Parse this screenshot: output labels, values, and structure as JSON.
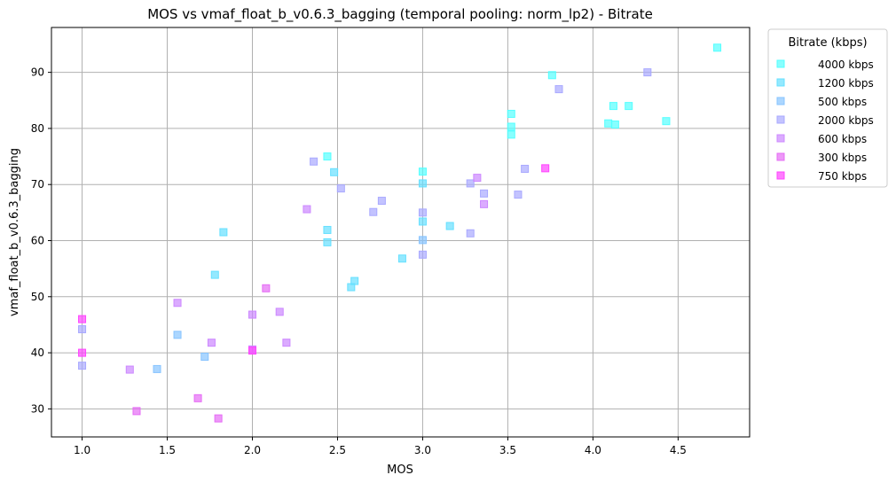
{
  "chart_data": {
    "type": "scatter",
    "title": "MOS vs vmaf_float_b_v0.6.3_bagging (temporal pooling: norm_lp2) - Bitrate",
    "xlabel": "MOS",
    "ylabel": "vmaf_float_b_v0.6.3_bagging",
    "xlim": [
      0.82,
      4.92
    ],
    "ylim": [
      25,
      98
    ],
    "xticks": [
      "1.0",
      "1.5",
      "2.0",
      "2.5",
      "3.0",
      "3.5",
      "4.0",
      "4.5"
    ],
    "yticks": [
      "30",
      "40",
      "50",
      "60",
      "70",
      "80",
      "90"
    ],
    "grid": true,
    "marker": "square",
    "legend": {
      "title": "Bitrate (kbps)",
      "placement": "outside-top-right"
    },
    "series": [
      {
        "name": "4000 kbps",
        "color": "#55ffff",
        "points": [
          [
            2.44,
            75.0
          ],
          [
            3.0,
            72.3
          ],
          [
            3.52,
            82.6
          ],
          [
            3.52,
            80.3
          ],
          [
            3.52,
            78.9
          ],
          [
            3.76,
            89.5
          ],
          [
            4.09,
            80.9
          ],
          [
            4.12,
            84.0
          ],
          [
            4.13,
            80.7
          ],
          [
            4.21,
            84.0
          ],
          [
            4.43,
            81.3
          ],
          [
            4.73,
            94.4
          ]
        ]
      },
      {
        "name": "1200 kbps",
        "color": "#66e0ff",
        "points": [
          [
            1.78,
            53.9
          ],
          [
            1.83,
            61.5
          ],
          [
            2.44,
            61.9
          ],
          [
            2.44,
            59.7
          ],
          [
            2.48,
            72.2
          ],
          [
            2.58,
            51.7
          ],
          [
            2.6,
            52.8
          ],
          [
            2.88,
            56.8
          ],
          [
            3.0,
            70.2
          ],
          [
            3.0,
            63.4
          ],
          [
            3.16,
            62.6
          ]
        ]
      },
      {
        "name": "500 kbps",
        "color": "#88c4ff",
        "points": [
          [
            1.44,
            37.1
          ],
          [
            1.56,
            43.2
          ],
          [
            1.72,
            39.3
          ],
          [
            3.0,
            60.1
          ]
        ]
      },
      {
        "name": "2000 kbps",
        "color": "#a9a9ff",
        "points": [
          [
            1.0,
            44.2
          ],
          [
            1.0,
            37.7
          ],
          [
            2.36,
            74.1
          ],
          [
            2.52,
            69.3
          ],
          [
            2.71,
            65.1
          ],
          [
            2.76,
            67.1
          ],
          [
            3.0,
            65.0
          ],
          [
            3.0,
            57.5
          ],
          [
            3.28,
            61.3
          ],
          [
            3.28,
            70.2
          ],
          [
            3.36,
            68.4
          ],
          [
            3.56,
            68.2
          ],
          [
            3.6,
            72.8
          ],
          [
            3.8,
            87.0
          ],
          [
            4.32,
            90.0
          ]
        ]
      },
      {
        "name": "600 kbps",
        "color": "#cc88ff",
        "points": [
          [
            1.28,
            37.0
          ],
          [
            1.56,
            48.9
          ],
          [
            1.76,
            41.8
          ],
          [
            2.0,
            46.8
          ],
          [
            2.0,
            40.6
          ],
          [
            2.16,
            47.3
          ],
          [
            2.2,
            41.8
          ],
          [
            2.32,
            65.6
          ],
          [
            3.32,
            71.2
          ],
          [
            3.36,
            66.5
          ]
        ]
      },
      {
        "name": "300 kbps",
        "color": "#e56cf5",
        "points": [
          [
            1.32,
            29.6
          ],
          [
            1.68,
            31.9
          ],
          [
            1.8,
            28.3
          ],
          [
            2.08,
            51.5
          ]
        ]
      },
      {
        "name": "750 kbps",
        "color": "#ff44ff",
        "points": [
          [
            1.0,
            46.0
          ],
          [
            1.0,
            40.0
          ],
          [
            2.0,
            40.4
          ],
          [
            3.72,
            72.9
          ]
        ]
      }
    ]
  }
}
